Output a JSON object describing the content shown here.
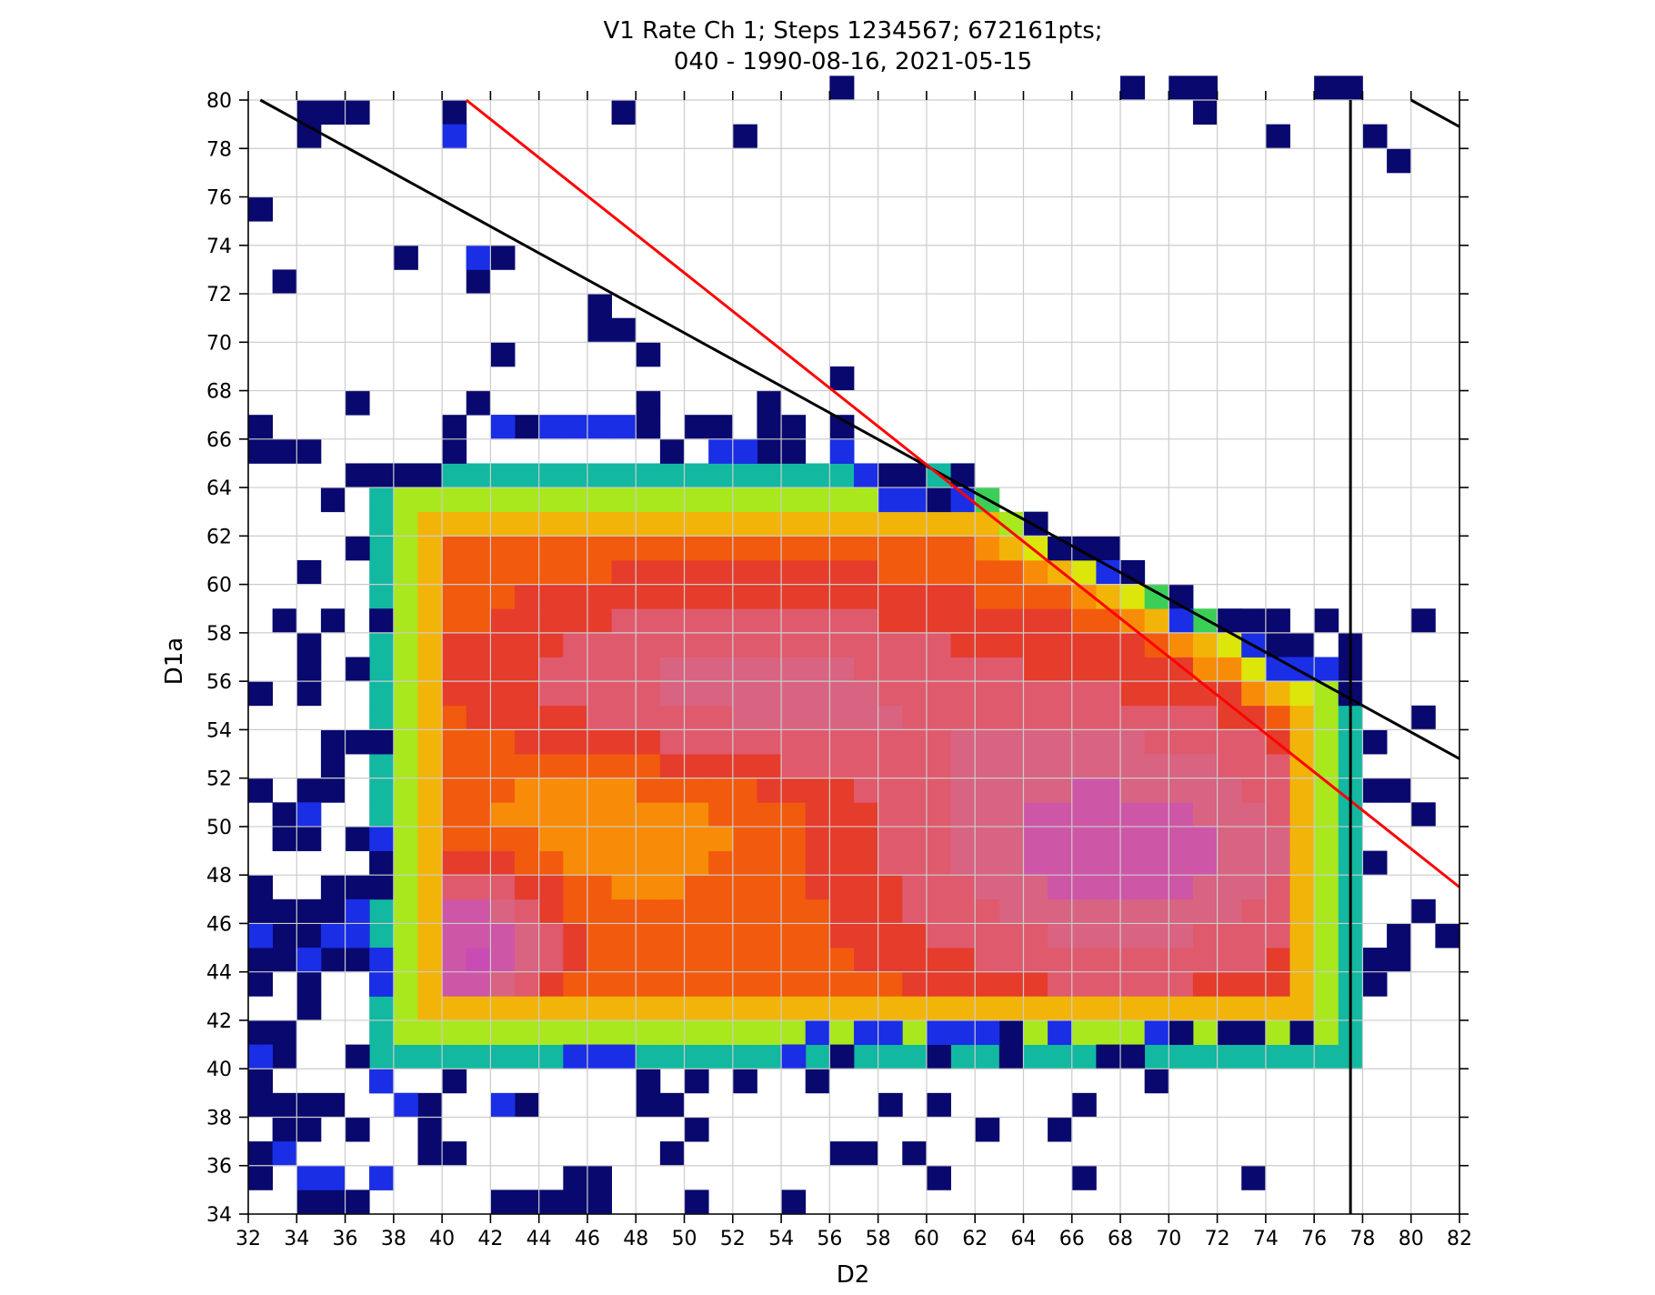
{
  "chart_data": {
    "type": "heatmap",
    "title_line1": "V1 Rate Ch 1; Steps 1234567; 672161pts;",
    "title_line2": "040 - 1990-08-16, 2021-05-15",
    "xlabel": "D2",
    "ylabel": "D1a",
    "xlim": [
      32,
      82
    ],
    "ylim": [
      34,
      80
    ],
    "x_ticks": [
      32,
      34,
      36,
      38,
      40,
      42,
      44,
      46,
      48,
      50,
      52,
      54,
      56,
      58,
      60,
      62,
      64,
      66,
      68,
      70,
      72,
      74,
      76,
      78,
      80,
      82
    ],
    "y_ticks": [
      34,
      36,
      38,
      40,
      42,
      44,
      46,
      48,
      50,
      52,
      54,
      56,
      58,
      60,
      62,
      64,
      66,
      68,
      70,
      72,
      74,
      76,
      78,
      80
    ],
    "grid": true,
    "bin_width": 1,
    "colormap": [
      {
        "level": 0,
        "color": "#08086e"
      },
      {
        "level": 1,
        "color": "#1a2ee6"
      },
      {
        "level": 2,
        "color": "#1270e8"
      },
      {
        "level": 3,
        "color": "#0aa4d8"
      },
      {
        "level": 4,
        "color": "#12b8a0"
      },
      {
        "level": 5,
        "color": "#3ccf58"
      },
      {
        "level": 6,
        "color": "#a8e81c"
      },
      {
        "level": 7,
        "color": "#dce60a"
      },
      {
        "level": 8,
        "color": "#f2b408"
      },
      {
        "level": 9,
        "color": "#f88c08"
      },
      {
        "level": 10,
        "color": "#f25a0e"
      },
      {
        "level": 11,
        "color": "#e63c2c"
      },
      {
        "level": 12,
        "color": "#e05a6e"
      },
      {
        "level": 13,
        "color": "#d86482"
      },
      {
        "level": 14,
        "color": "#ce56a6"
      },
      {
        "level": 15,
        "color": "#c84cb4"
      }
    ],
    "sparse_cells": [
      [
        32,
        75
      ],
      [
        32,
        66
      ],
      [
        32,
        65
      ],
      [
        32,
        55
      ],
      [
        32,
        51
      ],
      [
        32,
        47
      ],
      [
        32,
        46
      ],
      [
        32,
        44
      ],
      [
        32,
        43
      ],
      [
        32,
        41
      ],
      [
        32,
        38
      ],
      [
        32,
        36
      ],
      [
        32,
        35
      ],
      [
        32,
        39
      ],
      [
        32,
        40
      ],
      [
        33,
        72
      ],
      [
        33,
        65
      ],
      [
        33,
        58
      ],
      [
        33,
        49
      ],
      [
        33,
        50
      ],
      [
        33,
        46
      ],
      [
        33,
        45
      ],
      [
        33,
        44
      ],
      [
        33,
        41
      ],
      [
        33,
        40
      ],
      [
        33,
        38
      ],
      [
        33,
        37
      ],
      [
        33,
        36
      ],
      [
        34,
        79
      ],
      [
        34,
        78
      ],
      [
        34,
        65
      ],
      [
        34,
        60
      ],
      [
        34,
        57
      ],
      [
        34,
        56
      ],
      [
        34,
        55
      ],
      [
        34,
        51
      ],
      [
        34,
        49
      ],
      [
        34,
        46
      ],
      [
        34,
        45
      ],
      [
        34,
        44
      ],
      [
        34,
        43
      ],
      [
        34,
        42
      ],
      [
        34,
        38
      ],
      [
        34,
        37
      ],
      [
        34,
        34
      ],
      [
        34,
        33
      ],
      [
        35,
        79
      ],
      [
        35,
        63
      ],
      [
        35,
        58
      ],
      [
        35,
        53
      ],
      [
        35,
        52
      ],
      [
        35,
        51
      ],
      [
        35,
        47
      ],
      [
        35,
        46
      ],
      [
        35,
        45
      ],
      [
        35,
        44
      ],
      [
        35,
        38
      ],
      [
        35,
        34
      ],
      [
        36,
        79
      ],
      [
        36,
        67
      ],
      [
        36,
        64
      ],
      [
        36,
        61
      ],
      [
        36,
        56
      ],
      [
        36,
        53
      ],
      [
        36,
        49
      ],
      [
        36,
        47
      ],
      [
        36,
        44
      ],
      [
        36,
        40
      ],
      [
        36,
        37
      ],
      [
        36,
        34
      ],
      [
        37,
        64
      ],
      [
        37,
        58
      ],
      [
        37,
        53
      ],
      [
        37,
        48
      ],
      [
        37,
        47
      ],
      [
        37,
        43
      ],
      [
        37,
        39
      ],
      [
        37,
        35
      ],
      [
        38,
        73
      ],
      [
        38,
        64
      ],
      [
        38,
        38
      ],
      [
        39,
        64
      ],
      [
        39,
        38
      ],
      [
        39,
        37
      ],
      [
        39,
        36
      ],
      [
        40,
        79
      ],
      [
        40,
        78
      ],
      [
        40,
        66
      ],
      [
        40,
        65
      ],
      [
        40,
        39
      ],
      [
        40,
        36
      ],
      [
        41,
        73
      ],
      [
        41,
        72
      ],
      [
        41,
        67
      ],
      [
        42,
        73
      ],
      [
        42,
        69
      ],
      [
        42,
        66
      ],
      [
        42,
        34
      ],
      [
        43,
        66
      ],
      [
        43,
        38
      ],
      [
        43,
        34
      ],
      [
        44,
        34
      ],
      [
        45,
        35
      ],
      [
        45,
        34
      ],
      [
        46,
        71
      ],
      [
        46,
        70
      ],
      [
        46,
        35
      ],
      [
        46,
        34
      ],
      [
        47,
        79
      ],
      [
        47,
        70
      ],
      [
        48,
        69
      ],
      [
        48,
        67
      ],
      [
        48,
        66
      ],
      [
        48,
        39
      ],
      [
        48,
        38
      ],
      [
        49,
        65
      ],
      [
        49,
        38
      ],
      [
        49,
        36
      ],
      [
        50,
        66
      ],
      [
        50,
        39
      ],
      [
        50,
        37
      ],
      [
        50,
        34
      ],
      [
        51,
        66
      ],
      [
        52,
        78
      ],
      [
        52,
        39
      ],
      [
        53,
        67
      ],
      [
        53,
        66
      ],
      [
        53,
        65
      ],
      [
        54,
        66
      ],
      [
        54,
        65
      ],
      [
        54,
        40
      ],
      [
        54,
        34
      ],
      [
        55,
        39
      ],
      [
        56,
        80
      ],
      [
        56,
        68
      ],
      [
        56,
        66
      ],
      [
        56,
        65
      ],
      [
        56,
        40
      ],
      [
        56,
        36
      ],
      [
        57,
        36
      ],
      [
        58,
        64
      ],
      [
        58,
        38
      ],
      [
        59,
        64
      ],
      [
        59,
        36
      ],
      [
        60,
        63
      ],
      [
        60,
        40
      ],
      [
        60,
        38
      ],
      [
        60,
        35
      ],
      [
        61,
        64
      ],
      [
        62,
        37
      ],
      [
        63,
        41
      ],
      [
        63,
        40
      ],
      [
        64,
        62
      ],
      [
        65,
        61
      ],
      [
        65,
        37
      ],
      [
        66,
        61
      ],
      [
        66,
        38
      ],
      [
        66,
        35
      ],
      [
        67,
        61
      ],
      [
        67,
        40
      ],
      [
        68,
        80
      ],
      [
        68,
        60
      ],
      [
        68,
        40
      ],
      [
        69,
        39
      ],
      [
        70,
        80
      ],
      [
        70,
        59
      ],
      [
        70,
        41
      ],
      [
        71,
        80
      ],
      [
        71,
        79
      ],
      [
        72,
        58
      ],
      [
        72,
        41
      ],
      [
        73,
        58
      ],
      [
        73,
        41
      ],
      [
        73,
        35
      ],
      [
        74,
        78
      ],
      [
        74,
        58
      ],
      [
        74,
        57
      ],
      [
        75,
        57
      ],
      [
        75,
        56
      ],
      [
        75,
        41
      ],
      [
        76,
        80
      ],
      [
        76,
        58
      ],
      [
        76,
        56
      ],
      [
        77,
        80
      ],
      [
        77,
        57
      ],
      [
        77,
        56
      ],
      [
        77,
        55
      ],
      [
        78,
        78
      ],
      [
        78,
        53
      ],
      [
        78,
        51
      ],
      [
        78,
        48
      ],
      [
        78,
        44
      ],
      [
        78,
        43
      ],
      [
        79,
        77
      ],
      [
        79,
        51
      ],
      [
        79,
        45
      ],
      [
        79,
        44
      ],
      [
        80,
        58
      ],
      [
        80,
        54
      ],
      [
        80,
        50
      ],
      [
        80,
        46
      ],
      [
        81,
        45
      ]
    ],
    "sparse_level1_cells": [
      [
        40,
        78
      ],
      [
        41,
        73
      ],
      [
        33,
        36
      ],
      [
        34,
        35
      ],
      [
        35,
        35
      ],
      [
        37,
        35
      ],
      [
        37,
        39
      ],
      [
        38,
        38
      ],
      [
        42,
        38
      ],
      [
        45,
        40
      ],
      [
        46,
        40
      ],
      [
        47,
        40
      ],
      [
        51,
        65
      ],
      [
        52,
        65
      ],
      [
        54,
        40
      ],
      [
        55,
        41
      ],
      [
        57,
        41
      ],
      [
        58,
        41
      ],
      [
        60,
        41
      ],
      [
        61,
        41
      ],
      [
        62,
        41
      ],
      [
        65,
        41
      ],
      [
        67,
        60
      ],
      [
        69,
        41
      ],
      [
        70,
        58
      ],
      [
        73,
        57
      ],
      [
        74,
        56
      ],
      [
        75,
        56
      ],
      [
        76,
        56
      ],
      [
        32,
        45
      ],
      [
        35,
        45
      ],
      [
        36,
        45
      ],
      [
        37,
        49
      ],
      [
        34,
        50
      ],
      [
        34,
        44
      ],
      [
        36,
        46
      ],
      [
        37,
        44
      ],
      [
        37,
        43
      ],
      [
        42,
        66
      ],
      [
        44,
        66
      ],
      [
        45,
        66
      ],
      [
        46,
        66
      ],
      [
        47,
        66
      ],
      [
        52,
        65
      ],
      [
        56,
        65
      ],
      [
        57,
        64
      ],
      [
        58,
        63
      ],
      [
        59,
        63
      ],
      [
        61,
        63
      ],
      [
        32,
        40
      ]
    ],
    "core_region": {
      "x_range": [
        37.5,
        77.5
      ],
      "y_range": [
        40.5,
        64.5
      ]
    },
    "lines": [
      {
        "color": "#000000",
        "points": [
          [
            32.5,
            80
          ],
          [
            82,
            52.8
          ]
        ]
      },
      {
        "color": "#ff0000",
        "points": [
          [
            41,
            80
          ],
          [
            82,
            47.5
          ]
        ]
      },
      {
        "color": "#000000",
        "points": [
          [
            77.5,
            34
          ],
          [
            77.5,
            80
          ]
        ]
      },
      {
        "color": "#000000",
        "points": [
          [
            80,
            80
          ],
          [
            82,
            78.9
          ]
        ]
      }
    ]
  }
}
